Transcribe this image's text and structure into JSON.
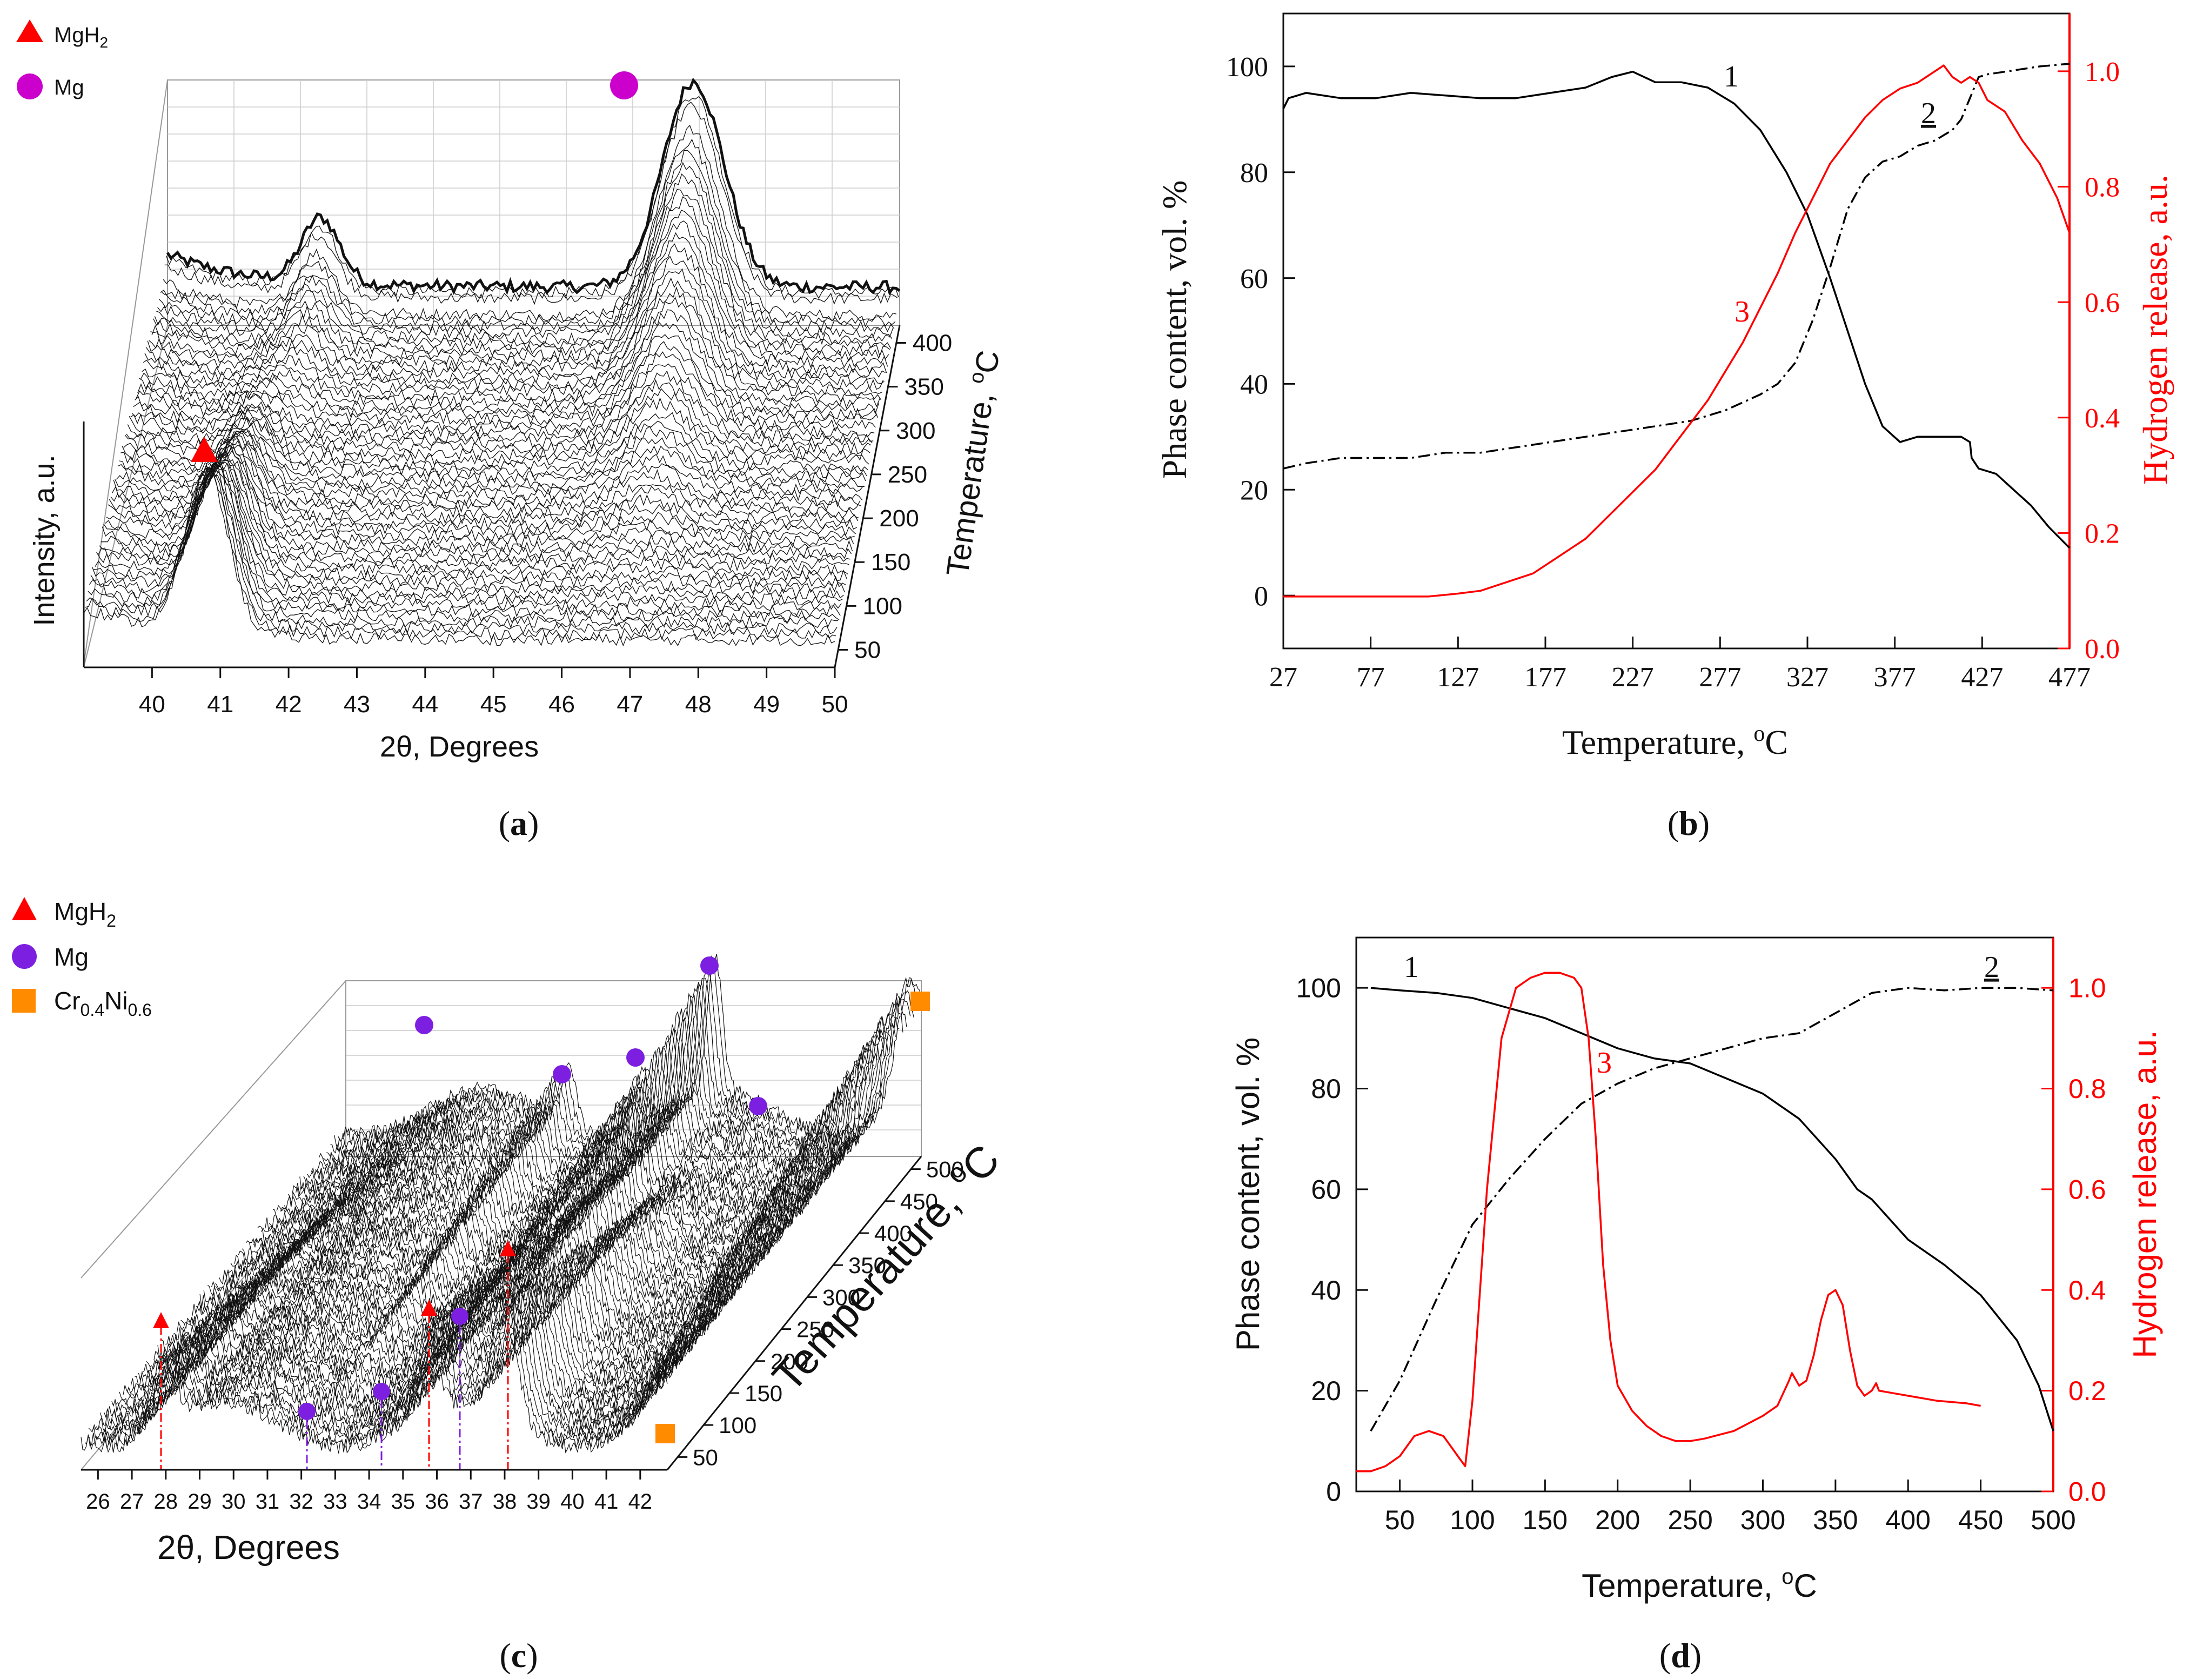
{
  "panels": {
    "a": {
      "caption_open": "(",
      "caption_letter": "a",
      "caption_close": ")",
      "legend": [
        {
          "name": "MgH₂",
          "base": "MgH",
          "sub": "2",
          "marker": "triangle",
          "color": "#ff0000"
        },
        {
          "name": "Mg",
          "base": "Mg",
          "sub": "",
          "marker": "circle",
          "color": "#cc00cc"
        }
      ]
    },
    "b": {
      "caption_open": "(",
      "caption_letter": "b",
      "caption_close": ")"
    },
    "c": {
      "caption_open": "(",
      "caption_letter": "c",
      "caption_close": ")",
      "legend": [
        {
          "name": "MgH₂",
          "base": "MgH",
          "sub": "2",
          "marker": "triangle",
          "color": "#ff0000"
        },
        {
          "name": "Mg",
          "base": "Mg",
          "sub": "",
          "marker": "circle",
          "color": "#7d1fe0"
        },
        {
          "name": "Cr0.4Ni0.6",
          "base1": "Cr",
          "sub1": "0.4",
          "base2": "Ni",
          "sub2": "0.6",
          "marker": "square",
          "color": "#ff8c00"
        }
      ]
    },
    "d": {
      "caption_open": "(",
      "caption_letter": "d",
      "caption_close": ")"
    }
  },
  "chart_data": [
    {
      "id": "a",
      "type": "waterfall-3d",
      "title": "",
      "xlabel": "2θ, Degrees",
      "ylabel": "Temperature, oC",
      "ylabel_parts": [
        "Temperature, ",
        "o",
        "C"
      ],
      "zlabel": "Intensity, a.u.",
      "x_ticks": [
        "40",
        "41",
        "42",
        "43",
        "44",
        "45",
        "46",
        "47",
        "48",
        "49",
        "50"
      ],
      "x_range": [
        39,
        50
      ],
      "y_ticks": [
        "50",
        "100",
        "150",
        "200",
        "250",
        "300",
        "350",
        "400"
      ],
      "y_range": [
        30,
        420
      ],
      "peaks": [
        {
          "phase": "MgH2",
          "two_theta": 40.8,
          "dominant_temperature": "low",
          "marker": "triangle"
        },
        {
          "phase": "Mg",
          "two_theta": 46.9,
          "dominant_temperature": "high",
          "marker": "circle"
        }
      ]
    },
    {
      "id": "b",
      "type": "line",
      "title": "",
      "xlabel": "Temperature, oC",
      "xlabel_parts": [
        "Temperature, ",
        "o",
        "C"
      ],
      "ylabel": "Phase content, vol. %",
      "y2label": "Hydrogen release, a.u.",
      "x_ticks": [
        "27",
        "77",
        "127",
        "177",
        "227",
        "277",
        "327",
        "377",
        "427",
        "477"
      ],
      "xlim": [
        27,
        477
      ],
      "y_ticks": [
        "0",
        "20",
        "40",
        "60",
        "80",
        "100"
      ],
      "ylim": [
        -10,
        110
      ],
      "y2_ticks": [
        "0.0",
        "0.2",
        "0.4",
        "0.6",
        "0.8",
        "1.0"
      ],
      "y2lim": [
        0,
        1.1
      ],
      "series": [
        {
          "name": "1",
          "label": "1",
          "style": "solid",
          "color": "#000000",
          "axis": "left",
          "x": [
            27,
            30,
            40,
            60,
            80,
            100,
            120,
            140,
            160,
            180,
            200,
            215,
            227,
            240,
            255,
            270,
            285,
            300,
            315,
            327,
            340,
            350,
            360,
            370,
            380,
            390,
            400,
            410,
            415,
            420,
            421,
            425,
            435,
            445,
            455,
            465,
            477
          ],
          "values": [
            92,
            94,
            95,
            94,
            94,
            95,
            94.5,
            94,
            94,
            95,
            96,
            98,
            99,
            97,
            97,
            96,
            93,
            88,
            80,
            72,
            60,
            50,
            40,
            32,
            29,
            30,
            30,
            30,
            30,
            29,
            26,
            24,
            23,
            20,
            17,
            13,
            9
          ]
        },
        {
          "name": "2",
          "label": "2",
          "style": "dashdot",
          "color": "#000000",
          "axis": "left",
          "x": [
            27,
            40,
            60,
            80,
            100,
            120,
            140,
            160,
            180,
            200,
            220,
            240,
            260,
            280,
            300,
            310,
            320,
            330,
            340,
            350,
            360,
            370,
            380,
            390,
            400,
            410,
            415,
            420,
            425,
            430,
            440,
            450,
            460,
            477
          ],
          "values": [
            24,
            25,
            26,
            26,
            26,
            27,
            27,
            28,
            29,
            30,
            31,
            32,
            33,
            35,
            38,
            40,
            44,
            52,
            62,
            73,
            79,
            82,
            83,
            85,
            86,
            88,
            90,
            94,
            98,
            98.5,
            99,
            99.5,
            100,
            100.5
          ]
        },
        {
          "name": "3",
          "label": "3",
          "style": "solid",
          "color": "#ff0000",
          "axis": "right",
          "x": [
            27,
            50,
            80,
            110,
            127,
            140,
            150,
            160,
            170,
            180,
            190,
            200,
            210,
            220,
            230,
            240,
            250,
            260,
            270,
            280,
            290,
            300,
            310,
            320,
            330,
            340,
            350,
            360,
            370,
            380,
            390,
            400,
            405,
            410,
            415,
            420,
            425,
            430,
            440,
            450,
            460,
            470,
            477
          ],
          "values": [
            0.09,
            0.09,
            0.09,
            0.09,
            0.095,
            0.1,
            0.11,
            0.12,
            0.13,
            0.15,
            0.17,
            0.19,
            0.22,
            0.25,
            0.28,
            0.31,
            0.35,
            0.39,
            0.43,
            0.48,
            0.53,
            0.59,
            0.65,
            0.72,
            0.78,
            0.84,
            0.88,
            0.92,
            0.95,
            0.97,
            0.98,
            1.0,
            1.01,
            0.99,
            0.98,
            0.99,
            0.98,
            0.95,
            0.93,
            0.88,
            0.84,
            0.78,
            0.72
          ]
        }
      ]
    },
    {
      "id": "c",
      "type": "waterfall-3d",
      "title": "",
      "xlabel": "2θ, Degrees",
      "ylabel": "Temperature, oC",
      "ylabel_parts": [
        "Temperature, ",
        "o",
        "C"
      ],
      "x_ticks": [
        "26",
        "27",
        "28",
        "29",
        "30",
        "31",
        "32",
        "33",
        "34",
        "35",
        "36",
        "37",
        "38",
        "39",
        "40",
        "41",
        "42"
      ],
      "x_range": [
        25.5,
        42.8
      ],
      "y_ticks": [
        "50",
        "100",
        "150",
        "200",
        "250",
        "300",
        "350",
        "400",
        "450",
        "500"
      ],
      "y_range": [
        30,
        520
      ],
      "peaks": [
        {
          "phase": "MgH2",
          "two_theta": 27.9,
          "marker": "triangle"
        },
        {
          "phase": "MgH2",
          "two_theta": 35.7,
          "marker": "triangle"
        },
        {
          "phase": "MgH2",
          "two_theta": 38.0,
          "marker": "triangle"
        },
        {
          "phase": "Mg",
          "two_theta": 32.2,
          "marker": "circle"
        },
        {
          "phase": "Mg",
          "two_theta": 34.4,
          "marker": "circle"
        },
        {
          "phase": "Mg",
          "two_theta": 36.6,
          "marker": "circle"
        },
        {
          "phase": "Cr0.4Ni0.6",
          "two_theta": 42.2,
          "marker": "square"
        }
      ]
    },
    {
      "id": "d",
      "type": "line",
      "title": "",
      "xlabel": "Temperature, oC",
      "xlabel_parts": [
        "Temperature, ",
        "o",
        "C"
      ],
      "ylabel": "Phase content, vol. %",
      "y2label": "Hydrogen release, a.u.",
      "x_ticks": [
        "50",
        "100",
        "150",
        "200",
        "250",
        "300",
        "350",
        "400",
        "450",
        "500"
      ],
      "xlim": [
        20,
        500
      ],
      "y_ticks": [
        "0",
        "20",
        "40",
        "60",
        "80",
        "100"
      ],
      "ylim": [
        0,
        110
      ],
      "y2_ticks": [
        "0.0",
        "0.2",
        "0.4",
        "0.6",
        "0.8",
        "1.0"
      ],
      "y2lim": [
        0,
        1.1
      ],
      "series": [
        {
          "name": "1",
          "label": "1",
          "style": "solid",
          "color": "#000000",
          "axis": "left",
          "x": [
            30,
            50,
            75,
            100,
            125,
            150,
            175,
            200,
            225,
            250,
            275,
            300,
            325,
            350,
            365,
            375,
            400,
            425,
            450,
            475,
            490,
            500
          ],
          "values": [
            100,
            99.5,
            99,
            98,
            96,
            94,
            91,
            88,
            86,
            85,
            82,
            79,
            74,
            66,
            60,
            58,
            50,
            45,
            39,
            30,
            21,
            12
          ]
        },
        {
          "name": "2",
          "label": "2",
          "style": "dashdot",
          "color": "#000000",
          "axis": "left",
          "x": [
            30,
            50,
            75,
            100,
            125,
            150,
            175,
            200,
            225,
            250,
            275,
            300,
            325,
            350,
            375,
            400,
            425,
            450,
            475,
            500
          ],
          "values": [
            12,
            22,
            38,
            53,
            62,
            70,
            77,
            81,
            84,
            86,
            88,
            90,
            91,
            95,
            99,
            100,
            99.5,
            100,
            100,
            99.5
          ]
        },
        {
          "name": "3",
          "label": "3",
          "style": "solid",
          "color": "#ff0000",
          "axis": "right",
          "x": [
            20,
            30,
            40,
            50,
            60,
            70,
            80,
            90,
            95,
            100,
            110,
            120,
            130,
            140,
            150,
            160,
            170,
            175,
            180,
            185,
            190,
            195,
            200,
            210,
            220,
            230,
            240,
            250,
            260,
            280,
            300,
            310,
            318,
            320,
            322,
            325,
            330,
            335,
            340,
            345,
            350,
            355,
            360,
            365,
            370,
            375,
            378,
            380,
            390,
            400,
            420,
            440,
            450
          ],
          "values": [
            0.04,
            0.04,
            0.05,
            0.07,
            0.11,
            0.12,
            0.11,
            0.07,
            0.05,
            0.18,
            0.6,
            0.9,
            1.0,
            1.02,
            1.03,
            1.03,
            1.02,
            1.0,
            0.9,
            0.7,
            0.45,
            0.3,
            0.21,
            0.16,
            0.13,
            0.11,
            0.1,
            0.1,
            0.105,
            0.12,
            0.15,
            0.17,
            0.22,
            0.235,
            0.225,
            0.21,
            0.22,
            0.27,
            0.34,
            0.39,
            0.4,
            0.37,
            0.28,
            0.21,
            0.19,
            0.2,
            0.215,
            0.2,
            0.195,
            0.19,
            0.18,
            0.175,
            0.17
          ]
        }
      ]
    }
  ]
}
